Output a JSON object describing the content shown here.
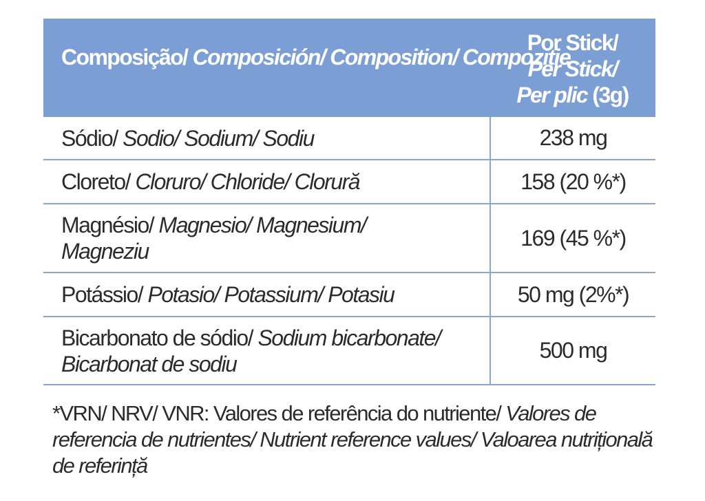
{
  "header": {
    "composition_normal": "Composição/ ",
    "composition_italic": "Composición/ Composition/ Compoziție",
    "per_line1": "Por Stick/",
    "per_line2": "Per Stick/",
    "per_line3_italic": "Per plic",
    "per_line3_normal": " (3g)"
  },
  "rows": [
    {
      "normal": "Sódio/ ",
      "italic": "Sodio/ Sodium/ Sodiu",
      "value": "238 mg"
    },
    {
      "normal": "Cloreto/ ",
      "italic": "Cloruro/ Chloride/ Clorură",
      "value": "158 (20 %*)"
    },
    {
      "normal": "Magnésio/ ",
      "italic": "Magnesio/ Magnesium/ Magneziu",
      "value": "169 (45 %*)"
    },
    {
      "normal": "Potássio/ ",
      "italic": "Potasio/ Potassium/ Potasiu",
      "value": "50 mg (2%*)"
    },
    {
      "normal": "Bicarbonato de sódio/ ",
      "italic": "Sodium bicarbonate/ Bicarbonat de sodiu",
      "value": "500 mg"
    }
  ],
  "footnote": {
    "normal": "*VRN/ NRV/ VNR: Valores de referência do nutriente/ ",
    "italic": "Valores de referencia de nutrientes/ Nutrient reference values/ Valoarea nutrițională de referință"
  },
  "colors": {
    "header_bg": "#7b9fd4",
    "grid": "#86a6d6"
  }
}
